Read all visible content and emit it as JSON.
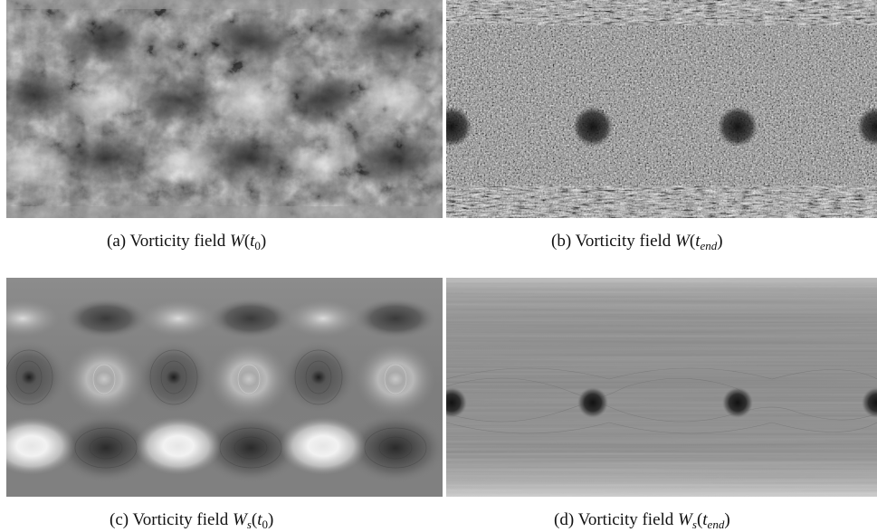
{
  "figure": {
    "panels": [
      {
        "id": "a",
        "label": "(a)",
        "caption_text": "Vorticity field",
        "symbol": "W",
        "symbol_sub": "",
        "arg": "t",
        "arg_sub": "0",
        "description_kind": "noisy-large-vortex-field"
      },
      {
        "id": "b",
        "label": "(b)",
        "caption_text": "Vorticity field",
        "symbol": "W",
        "symbol_sub": "",
        "arg": "t",
        "arg_sub": "end",
        "description_kind": "fine-noise-with-vortex-dots"
      },
      {
        "id": "c",
        "label": "(c)",
        "caption_text": "Vorticity field",
        "symbol": "W",
        "symbol_sub": "s",
        "arg": "t",
        "arg_sub": "0",
        "description_kind": "smooth-vortex-lattice"
      },
      {
        "id": "d",
        "label": "(d)",
        "caption_text": "Vorticity field",
        "symbol": "W",
        "symbol_sub": "s",
        "arg": "t",
        "arg_sub": "end",
        "description_kind": "banded-with-vortex-dots"
      }
    ]
  }
}
